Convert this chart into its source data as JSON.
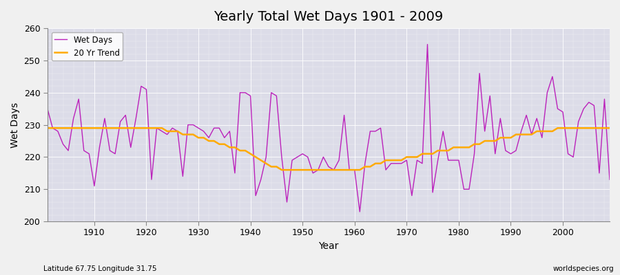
{
  "title": "Yearly Total Wet Days 1901 - 2009",
  "xlabel": "Year",
  "ylabel": "Wet Days",
  "subtitle_left": "Latitude 67.75 Longitude 31.75",
  "subtitle_right": "worldspecies.org",
  "ylim": [
    200,
    260
  ],
  "yticks": [
    200,
    210,
    220,
    230,
    240,
    250,
    260
  ],
  "bg_color": "#dcdce8",
  "plot_bg_color": "#dcdce8",
  "line_color": "#bb22bb",
  "trend_color": "#ffaa00",
  "legend_wet": "Wet Days",
  "legend_trend": "20 Yr Trend",
  "years": [
    1901,
    1902,
    1903,
    1904,
    1905,
    1906,
    1907,
    1908,
    1909,
    1910,
    1911,
    1912,
    1913,
    1914,
    1915,
    1916,
    1917,
    1918,
    1919,
    1920,
    1921,
    1922,
    1923,
    1924,
    1925,
    1926,
    1927,
    1928,
    1929,
    1930,
    1931,
    1932,
    1933,
    1934,
    1935,
    1936,
    1937,
    1938,
    1939,
    1940,
    1941,
    1942,
    1943,
    1944,
    1945,
    1946,
    1947,
    1948,
    1949,
    1950,
    1951,
    1952,
    1953,
    1954,
    1955,
    1956,
    1957,
    1958,
    1959,
    1960,
    1961,
    1962,
    1963,
    1964,
    1965,
    1966,
    1967,
    1968,
    1969,
    1970,
    1971,
    1972,
    1973,
    1974,
    1975,
    1976,
    1977,
    1978,
    1979,
    1980,
    1981,
    1982,
    1983,
    1984,
    1985,
    1986,
    1987,
    1988,
    1989,
    1990,
    1991,
    1992,
    1993,
    1994,
    1995,
    1996,
    1997,
    1998,
    1999,
    2000,
    2001,
    2002,
    2003,
    2004,
    2005,
    2006,
    2007,
    2008,
    2009
  ],
  "wet_days": [
    235,
    229,
    228,
    224,
    222,
    232,
    238,
    222,
    221,
    211,
    223,
    232,
    222,
    221,
    231,
    233,
    223,
    232,
    242,
    241,
    213,
    229,
    228,
    227,
    229,
    228,
    214,
    230,
    230,
    229,
    228,
    226,
    229,
    229,
    226,
    228,
    215,
    240,
    240,
    239,
    208,
    213,
    220,
    240,
    239,
    220,
    206,
    219,
    220,
    221,
    220,
    215,
    216,
    220,
    217,
    216,
    219,
    233,
    216,
    216,
    203,
    218,
    228,
    228,
    229,
    216,
    218,
    218,
    218,
    219,
    208,
    219,
    218,
    255,
    209,
    219,
    228,
    219,
    219,
    219,
    210,
    210,
    221,
    246,
    228,
    239,
    221,
    232,
    222,
    221,
    222,
    228,
    233,
    227,
    232,
    226,
    240,
    245,
    235,
    234,
    221,
    220,
    231,
    235,
    237,
    236,
    215,
    238,
    213
  ],
  "trend_days": [
    229,
    229,
    229,
    229,
    229,
    229,
    229,
    229,
    229,
    229,
    229,
    229,
    229,
    229,
    229,
    229,
    229,
    229,
    229,
    229,
    229,
    229,
    229,
    228,
    228,
    228,
    227,
    227,
    227,
    226,
    226,
    225,
    225,
    224,
    224,
    223,
    223,
    222,
    222,
    221,
    220,
    219,
    218,
    217,
    217,
    216,
    216,
    216,
    216,
    216,
    216,
    216,
    216,
    216,
    216,
    216,
    216,
    216,
    216,
    216,
    216,
    217,
    217,
    218,
    218,
    219,
    219,
    219,
    219,
    220,
    220,
    220,
    221,
    221,
    221,
    222,
    222,
    222,
    223,
    223,
    223,
    223,
    224,
    224,
    225,
    225,
    225,
    226,
    226,
    226,
    227,
    227,
    227,
    227,
    228,
    228,
    228,
    228,
    229,
    229,
    229,
    229,
    229,
    229,
    229,
    229,
    229,
    229,
    229
  ]
}
